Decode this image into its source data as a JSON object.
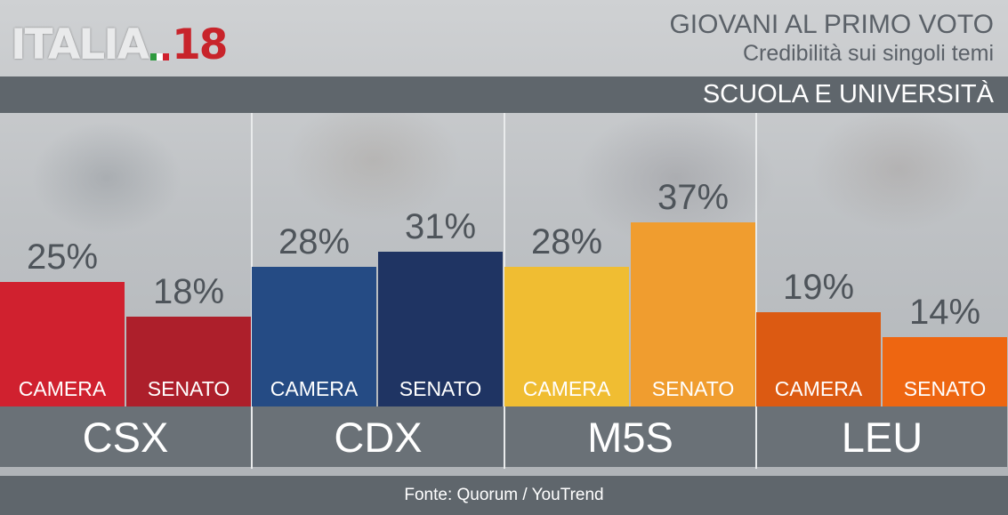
{
  "logo": {
    "text": "ITALIA",
    "number": "18"
  },
  "header": {
    "title": "GIOVANI AL PRIMO VOTO",
    "subtitle": "Credibilità sui singoli temi",
    "topic": "SCUOLA E UNIVERSITÀ"
  },
  "footer": {
    "source": "Fonte: Quorum / YouTrend"
  },
  "chart_data": {
    "type": "bar",
    "title": "GIOVANI AL PRIMO VOTO",
    "subtitle": "Credibilità sui singoli temi",
    "topic": "SCUOLA E UNIVERSITÀ",
    "categories": [
      "CSX",
      "CDX",
      "M5S",
      "LEU"
    ],
    "bar_labels": [
      "CAMERA",
      "SENATO"
    ],
    "value_suffix": "%",
    "series": [
      {
        "name": "CAMERA",
        "values": [
          25,
          28,
          28,
          19
        ]
      },
      {
        "name": "SENATO",
        "values": [
          18,
          31,
          37,
          14
        ]
      }
    ],
    "colors": [
      [
        "#d0212f",
        "#ad1f2b"
      ],
      [
        "#254b84",
        "#1f3463"
      ],
      [
        "#f0bd32",
        "#f09d2f"
      ],
      [
        "#dc5a12",
        "#ee6611"
      ]
    ],
    "ylim": [
      0,
      40
    ],
    "grid": false,
    "legend": "none",
    "source": "Fonte: Quorum / YouTrend"
  }
}
